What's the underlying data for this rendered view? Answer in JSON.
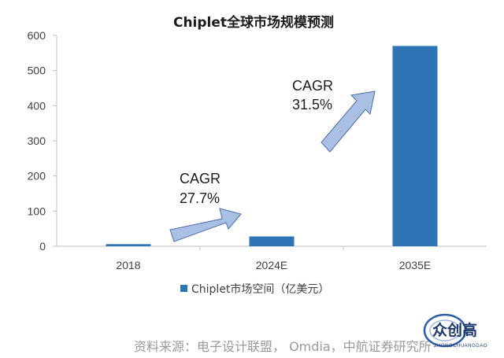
{
  "chart_data": {
    "type": "bar",
    "title": "Chiplet全球市场规模预测",
    "categories": [
      "2018",
      "2024E",
      "2035E"
    ],
    "series": [
      {
        "name": "Chiplet市场空间（亿美元）",
        "values": [
          6,
          28,
          570
        ]
      }
    ],
    "ylim": [
      0,
      600
    ],
    "yticks": [
      0,
      100,
      200,
      300,
      400,
      500,
      600
    ],
    "xlabel": "",
    "ylabel": "",
    "grid": false,
    "legend_position": "bottom",
    "annotations": [
      {
        "label": "CAGR",
        "value": "27.7%"
      },
      {
        "label": "CAGR",
        "value": "31.5%"
      }
    ],
    "bar_color": "#2e75b6",
    "arrow_color": "#a9c0e4"
  },
  "source_text": "资料来源：电子设计联盟， Omdia，中航证券研究所",
  "watermark": {
    "text": "众创高",
    "subtext": "ZHONGCHUANGGAO"
  }
}
